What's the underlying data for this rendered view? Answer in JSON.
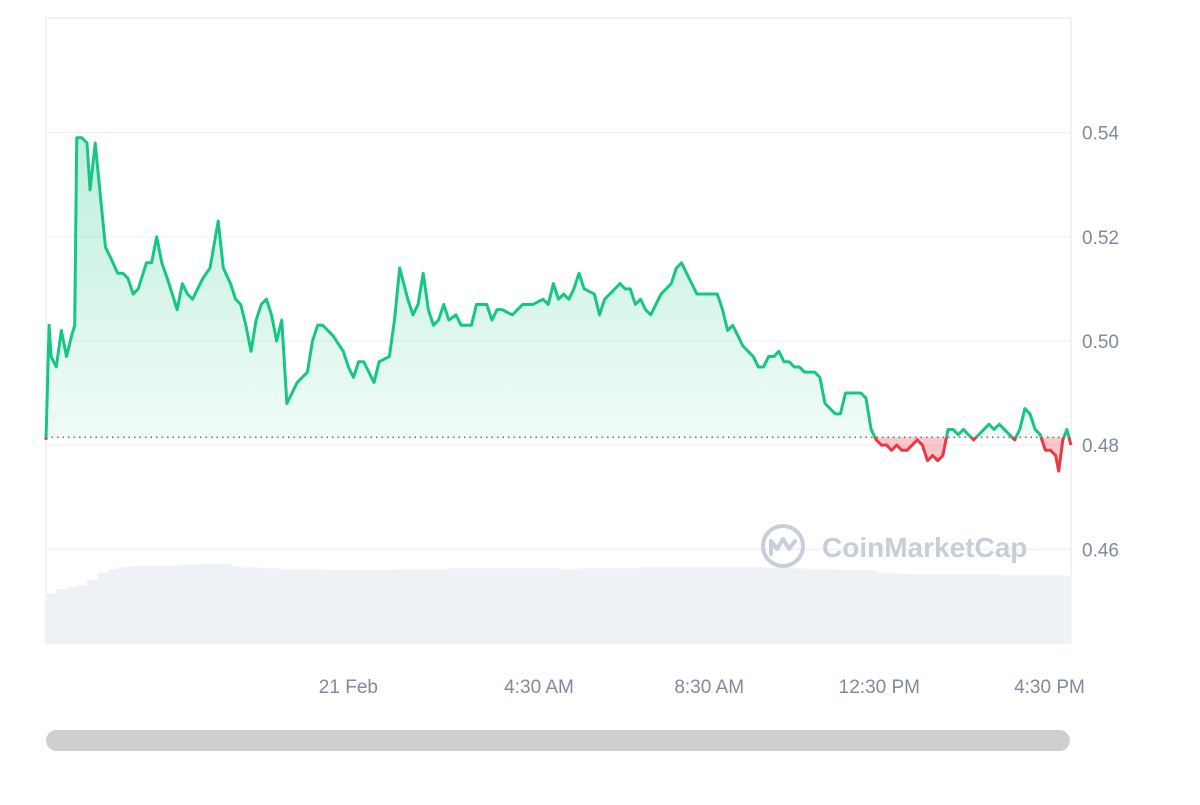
{
  "watermark": {
    "text": "CoinMarketCap"
  },
  "colors": {
    "up": "#16c784",
    "down": "#ea3943",
    "grid": "#eff2f5",
    "frame": "#e3e6ea",
    "axis_text": "#808a9d",
    "watermark": "#c7ced9",
    "volume": "#eef1f5",
    "scrollbar": "#cfcfcf"
  },
  "chart_data": {
    "type": "area",
    "baseline": 0.4815,
    "ylim": [
      0.442,
      0.562
    ],
    "y_ticks": [
      0.46,
      0.48,
      0.5,
      0.52,
      0.54
    ],
    "y_tick_labels": [
      "0.46",
      "0.48",
      "0.50",
      "0.52",
      "0.54"
    ],
    "x_range": [
      0,
      100
    ],
    "x_ticks": [
      {
        "x": 29.5,
        "label": "21 Feb"
      },
      {
        "x": 48.1,
        "label": "4:30 AM"
      },
      {
        "x": 64.7,
        "label": "8:30 AM"
      },
      {
        "x": 81.3,
        "label": "12:30 PM"
      },
      {
        "x": 97.9,
        "label": "4:30 PM"
      }
    ],
    "series": [
      {
        "points": [
          [
            0.0,
            0.481
          ],
          [
            0.3,
            0.503
          ],
          [
            0.5,
            0.497
          ],
          [
            1.0,
            0.495
          ],
          [
            1.5,
            0.502
          ],
          [
            2.0,
            0.497
          ],
          [
            2.5,
            0.501
          ],
          [
            2.8,
            0.503
          ],
          [
            3.0,
            0.539
          ],
          [
            3.5,
            0.539
          ],
          [
            4.0,
            0.538
          ],
          [
            4.3,
            0.529
          ],
          [
            4.8,
            0.538
          ],
          [
            5.3,
            0.528
          ],
          [
            5.8,
            0.518
          ],
          [
            6.3,
            0.516
          ],
          [
            7.0,
            0.513
          ],
          [
            7.5,
            0.513
          ],
          [
            8.0,
            0.512
          ],
          [
            8.5,
            0.509
          ],
          [
            9.0,
            0.51
          ],
          [
            9.8,
            0.515
          ],
          [
            10.3,
            0.515
          ],
          [
            10.8,
            0.52
          ],
          [
            11.3,
            0.515
          ],
          [
            12.0,
            0.511
          ],
          [
            12.8,
            0.506
          ],
          [
            13.3,
            0.511
          ],
          [
            13.8,
            0.509
          ],
          [
            14.3,
            0.508
          ],
          [
            14.8,
            0.51
          ],
          [
            15.3,
            0.512
          ],
          [
            16.0,
            0.514
          ],
          [
            16.8,
            0.523
          ],
          [
            17.3,
            0.514
          ],
          [
            18.0,
            0.511
          ],
          [
            18.5,
            0.508
          ],
          [
            19.0,
            0.507
          ],
          [
            19.5,
            0.503
          ],
          [
            20.0,
            0.498
          ],
          [
            20.5,
            0.504
          ],
          [
            21.0,
            0.507
          ],
          [
            21.5,
            0.508
          ],
          [
            22.0,
            0.505
          ],
          [
            22.5,
            0.5
          ],
          [
            23.0,
            0.504
          ],
          [
            23.5,
            0.488
          ],
          [
            24.5,
            0.492
          ],
          [
            25.5,
            0.494
          ],
          [
            26.0,
            0.5
          ],
          [
            26.5,
            0.503
          ],
          [
            27.0,
            0.503
          ],
          [
            28.0,
            0.501
          ],
          [
            29.0,
            0.498
          ],
          [
            29.5,
            0.495
          ],
          [
            30.0,
            0.493
          ],
          [
            30.5,
            0.496
          ],
          [
            31.0,
            0.496
          ],
          [
            31.5,
            0.494
          ],
          [
            32.0,
            0.492
          ],
          [
            32.5,
            0.496
          ],
          [
            33.5,
            0.497
          ],
          [
            34.0,
            0.504
          ],
          [
            34.5,
            0.514
          ],
          [
            35.3,
            0.508
          ],
          [
            35.8,
            0.505
          ],
          [
            36.3,
            0.507
          ],
          [
            36.8,
            0.513
          ],
          [
            37.3,
            0.506
          ],
          [
            37.8,
            0.503
          ],
          [
            38.3,
            0.504
          ],
          [
            38.8,
            0.507
          ],
          [
            39.3,
            0.504
          ],
          [
            40.0,
            0.505
          ],
          [
            40.5,
            0.503
          ],
          [
            41.5,
            0.503
          ],
          [
            42.0,
            0.507
          ],
          [
            42.5,
            0.507
          ],
          [
            43.0,
            0.507
          ],
          [
            43.5,
            0.504
          ],
          [
            44.0,
            0.506
          ],
          [
            44.5,
            0.506
          ],
          [
            45.5,
            0.505
          ],
          [
            46.5,
            0.507
          ],
          [
            47.5,
            0.507
          ],
          [
            48.5,
            0.508
          ],
          [
            49.0,
            0.507
          ],
          [
            49.5,
            0.511
          ],
          [
            50.0,
            0.508
          ],
          [
            50.5,
            0.509
          ],
          [
            51.0,
            0.508
          ],
          [
            51.5,
            0.51
          ],
          [
            52.0,
            0.513
          ],
          [
            52.5,
            0.51
          ],
          [
            53.5,
            0.509
          ],
          [
            54.0,
            0.505
          ],
          [
            54.5,
            0.508
          ],
          [
            55.0,
            0.509
          ],
          [
            55.5,
            0.51
          ],
          [
            56.0,
            0.511
          ],
          [
            56.5,
            0.51
          ],
          [
            57.0,
            0.51
          ],
          [
            57.5,
            0.507
          ],
          [
            58.0,
            0.508
          ],
          [
            58.5,
            0.506
          ],
          [
            59.0,
            0.505
          ],
          [
            59.5,
            0.507
          ],
          [
            60.0,
            0.509
          ],
          [
            61.0,
            0.511
          ],
          [
            61.5,
            0.514
          ],
          [
            62.0,
            0.515
          ],
          [
            62.5,
            0.513
          ],
          [
            63.0,
            0.511
          ],
          [
            63.5,
            0.509
          ],
          [
            64.0,
            0.509
          ],
          [
            64.5,
            0.509
          ],
          [
            65.0,
            0.509
          ],
          [
            65.5,
            0.509
          ],
          [
            66.0,
            0.506
          ],
          [
            66.5,
            0.502
          ],
          [
            67.0,
            0.503
          ],
          [
            67.5,
            0.501
          ],
          [
            68.0,
            0.499
          ],
          [
            68.5,
            0.498
          ],
          [
            69.0,
            0.497
          ],
          [
            69.5,
            0.495
          ],
          [
            70.0,
            0.495
          ],
          [
            70.5,
            0.497
          ],
          [
            71.0,
            0.497
          ],
          [
            71.5,
            0.498
          ],
          [
            72.0,
            0.496
          ],
          [
            72.5,
            0.496
          ],
          [
            73.0,
            0.495
          ],
          [
            73.5,
            0.495
          ],
          [
            74.0,
            0.494
          ],
          [
            74.5,
            0.494
          ],
          [
            75.0,
            0.494
          ],
          [
            75.5,
            0.493
          ],
          [
            76.0,
            0.488
          ],
          [
            76.5,
            0.487
          ],
          [
            77.0,
            0.486
          ],
          [
            77.5,
            0.486
          ],
          [
            78.0,
            0.49
          ],
          [
            78.5,
            0.49
          ],
          [
            79.0,
            0.49
          ],
          [
            79.5,
            0.49
          ],
          [
            80.0,
            0.489
          ],
          [
            80.5,
            0.483
          ],
          [
            81.0,
            0.481
          ],
          [
            81.5,
            0.48
          ],
          [
            82.0,
            0.48
          ],
          [
            82.5,
            0.479
          ],
          [
            83.0,
            0.48
          ],
          [
            83.5,
            0.479
          ],
          [
            84.0,
            0.479
          ],
          [
            84.5,
            0.48
          ],
          [
            85.0,
            0.481
          ],
          [
            85.5,
            0.48
          ],
          [
            86.0,
            0.477
          ],
          [
            86.5,
            0.478
          ],
          [
            87.0,
            0.477
          ],
          [
            87.5,
            0.478
          ],
          [
            88.0,
            0.483
          ],
          [
            88.5,
            0.483
          ],
          [
            89.0,
            0.482
          ],
          [
            89.5,
            0.483
          ],
          [
            90.0,
            0.482
          ],
          [
            90.5,
            0.481
          ],
          [
            91.0,
            0.482
          ],
          [
            91.5,
            0.483
          ],
          [
            92.0,
            0.484
          ],
          [
            92.5,
            0.483
          ],
          [
            93.0,
            0.484
          ],
          [
            93.5,
            0.483
          ],
          [
            94.0,
            0.482
          ],
          [
            94.5,
            0.481
          ],
          [
            95.0,
            0.483
          ],
          [
            95.5,
            0.487
          ],
          [
            96.0,
            0.486
          ],
          [
            96.5,
            0.483
          ],
          [
            97.0,
            0.482
          ],
          [
            97.5,
            0.479
          ],
          [
            98.0,
            0.479
          ],
          [
            98.5,
            0.478
          ],
          [
            98.8,
            0.475
          ],
          [
            99.2,
            0.481
          ],
          [
            99.6,
            0.483
          ],
          [
            100.0,
            0.48
          ]
        ]
      }
    ],
    "volume": {
      "ylim": [
        0,
        1
      ],
      "values": [
        0.55,
        0.6,
        0.62,
        0.64,
        0.7,
        0.78,
        0.82,
        0.84,
        0.85,
        0.86,
        0.86,
        0.86,
        0.86,
        0.87,
        0.87,
        0.88,
        0.88,
        0.88,
        0.85,
        0.84,
        0.84,
        0.83,
        0.83,
        0.82,
        0.82,
        0.82,
        0.82,
        0.81,
        0.81,
        0.81,
        0.81,
        0.81,
        0.81,
        0.81,
        0.82,
        0.82,
        0.82,
        0.82,
        0.82,
        0.83,
        0.83,
        0.83,
        0.83,
        0.83,
        0.83,
        0.83,
        0.83,
        0.83,
        0.83,
        0.83,
        0.82,
        0.82,
        0.83,
        0.83,
        0.83,
        0.83,
        0.83,
        0.83,
        0.84,
        0.84,
        0.84,
        0.84,
        0.84,
        0.84,
        0.84,
        0.84,
        0.84,
        0.84,
        0.84,
        0.84,
        0.84,
        0.84,
        0.84,
        0.83,
        0.82,
        0.82,
        0.82,
        0.81,
        0.81,
        0.81,
        0.81,
        0.78,
        0.77,
        0.77,
        0.76,
        0.76,
        0.76,
        0.76,
        0.76,
        0.76,
        0.76,
        0.76,
        0.76,
        0.75,
        0.75,
        0.75,
        0.75,
        0.75,
        0.75,
        0.75
      ]
    }
  }
}
